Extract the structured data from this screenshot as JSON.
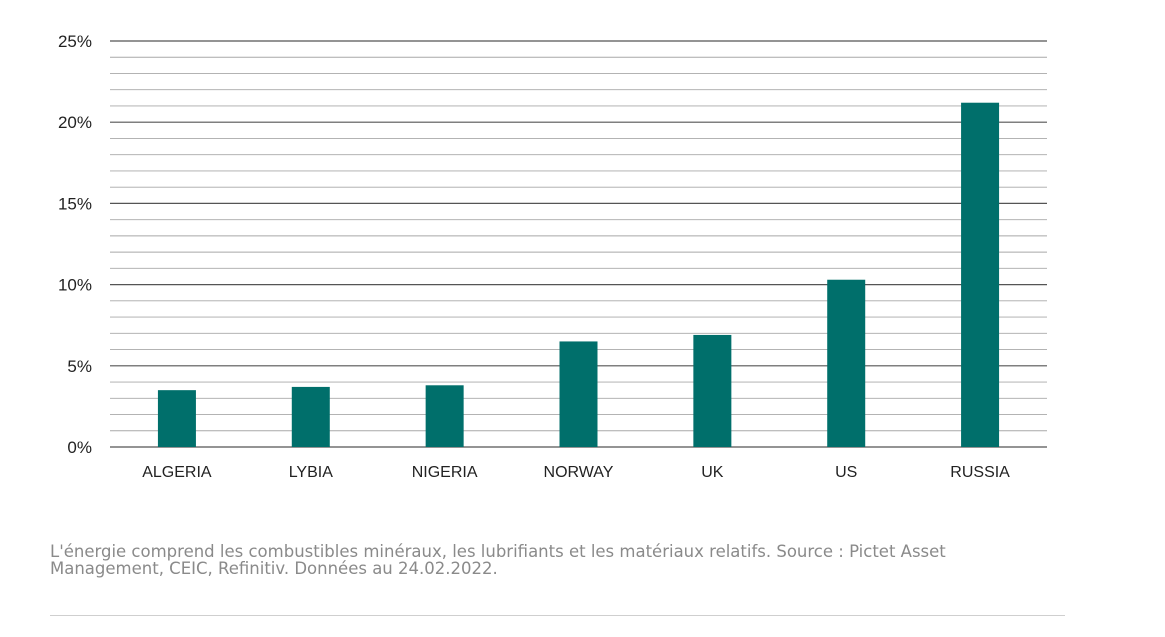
{
  "chart_data": {
    "type": "bar",
    "categories": [
      "ALGERIA",
      "LYBIA",
      "NIGERIA",
      "NORWAY",
      "UK",
      "US",
      "RUSSIA"
    ],
    "values": [
      3.5,
      3.7,
      3.8,
      6.5,
      6.9,
      10.3,
      21.2
    ],
    "ylim": [
      0,
      25
    ],
    "y_major_ticks": [
      0,
      5,
      10,
      15,
      20,
      25
    ],
    "y_tick_labels": [
      "0%",
      "5%",
      "10%",
      "15%",
      "20%",
      "25%"
    ],
    "y_minor_step": 1,
    "grid": true,
    "legend": "none",
    "title": "",
    "xlabel": "",
    "ylabel": "",
    "bar_color": "#006f6b"
  },
  "caption": "L'énergie comprend les combustibles minéraux, les lubrifiants et les matériaux relatifs. Source : Pictet Asset Management, CEIC, Refinitiv. Données au 24.02.2022."
}
